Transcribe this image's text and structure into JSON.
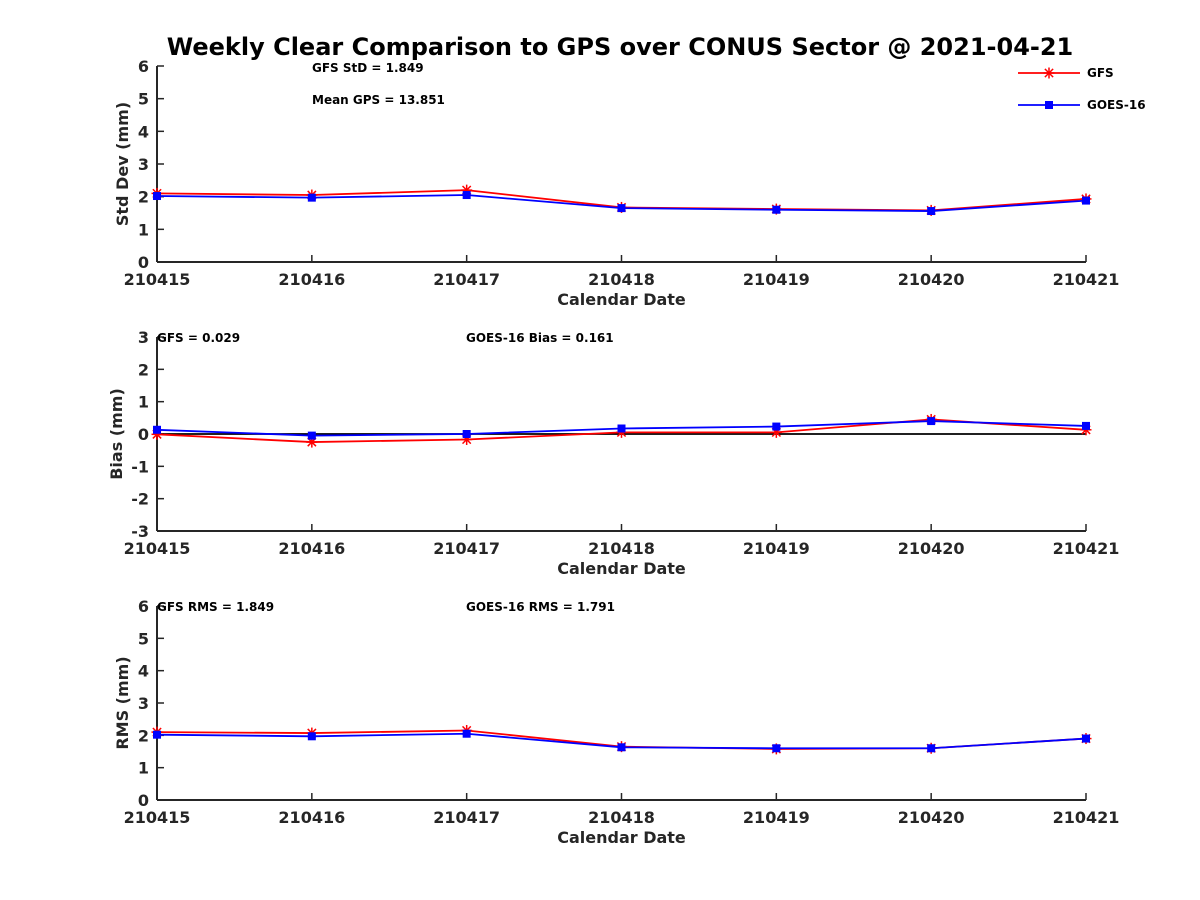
{
  "title": "Weekly Clear Comparison to GPS over CONUS Sector @ 2021-04-21",
  "colors": {
    "GFS": "#ff0000",
    "GOES-16": "#0000ff",
    "axis": "#262626",
    "zero_line": "#000000"
  },
  "legend": {
    "placement": "top-right",
    "entries": [
      {
        "name": "GFS",
        "marker": "asterisk"
      },
      {
        "name": "GOES-16",
        "marker": "square"
      }
    ]
  },
  "chart_data": [
    {
      "type": "line",
      "title": "Weekly Clear Comparison to GPS over CONUS Sector @ 2021-04-21",
      "xlabel": "Calendar Date",
      "ylabel": "Std Dev (mm)",
      "ylim": [
        0,
        6
      ],
      "yticks": [
        "0",
        "1",
        "2",
        "3",
        "4",
        "5",
        "6"
      ],
      "categories": [
        "210415",
        "210416",
        "210417",
        "210418",
        "210419",
        "210420",
        "210421"
      ],
      "annotations": [
        "GFS StD = 1.849",
        "Mean GPS = 13.851"
      ],
      "zero_line": false,
      "series": [
        {
          "name": "GFS",
          "values": [
            2.1,
            2.05,
            2.2,
            1.67,
            1.62,
            1.58,
            1.93
          ]
        },
        {
          "name": "GOES-16",
          "values": [
            2.02,
            1.97,
            2.05,
            1.65,
            1.6,
            1.56,
            1.88
          ]
        }
      ]
    },
    {
      "type": "line",
      "title": "",
      "xlabel": "Calendar Date",
      "ylabel": "Bias (mm)",
      "ylim": [
        -3,
        3
      ],
      "yticks": [
        "-3",
        "-2",
        "-1",
        "0",
        "1",
        "2",
        "3"
      ],
      "categories": [
        "210415",
        "210416",
        "210417",
        "210418",
        "210419",
        "210420",
        "210421"
      ],
      "annotations": [
        "GFS = 0.029",
        "GOES-16 Bias  = 0.161"
      ],
      "zero_line": true,
      "series": [
        {
          "name": "GFS",
          "values": [
            -0.01,
            -0.25,
            -0.17,
            0.05,
            0.05,
            0.45,
            0.13
          ]
        },
        {
          "name": "GOES-16",
          "values": [
            0.13,
            -0.05,
            0.0,
            0.17,
            0.23,
            0.4,
            0.25
          ]
        }
      ]
    },
    {
      "type": "line",
      "title": "",
      "xlabel": "Calendar Date",
      "ylabel": "RMS (mm)",
      "ylim": [
        0,
        6
      ],
      "yticks": [
        "0",
        "1",
        "2",
        "3",
        "4",
        "5",
        "6"
      ],
      "categories": [
        "210415",
        "210416",
        "210417",
        "210418",
        "210419",
        "210420",
        "210421"
      ],
      "annotations": [
        "GFS RMS = 1.849",
        "GOES-16 RMS = 1.791"
      ],
      "zero_line": false,
      "series": [
        {
          "name": "GFS",
          "values": [
            2.1,
            2.07,
            2.15,
            1.65,
            1.58,
            1.6,
            1.9
          ]
        },
        {
          "name": "GOES-16",
          "values": [
            2.02,
            1.97,
            2.05,
            1.63,
            1.6,
            1.6,
            1.9
          ]
        }
      ]
    }
  ]
}
